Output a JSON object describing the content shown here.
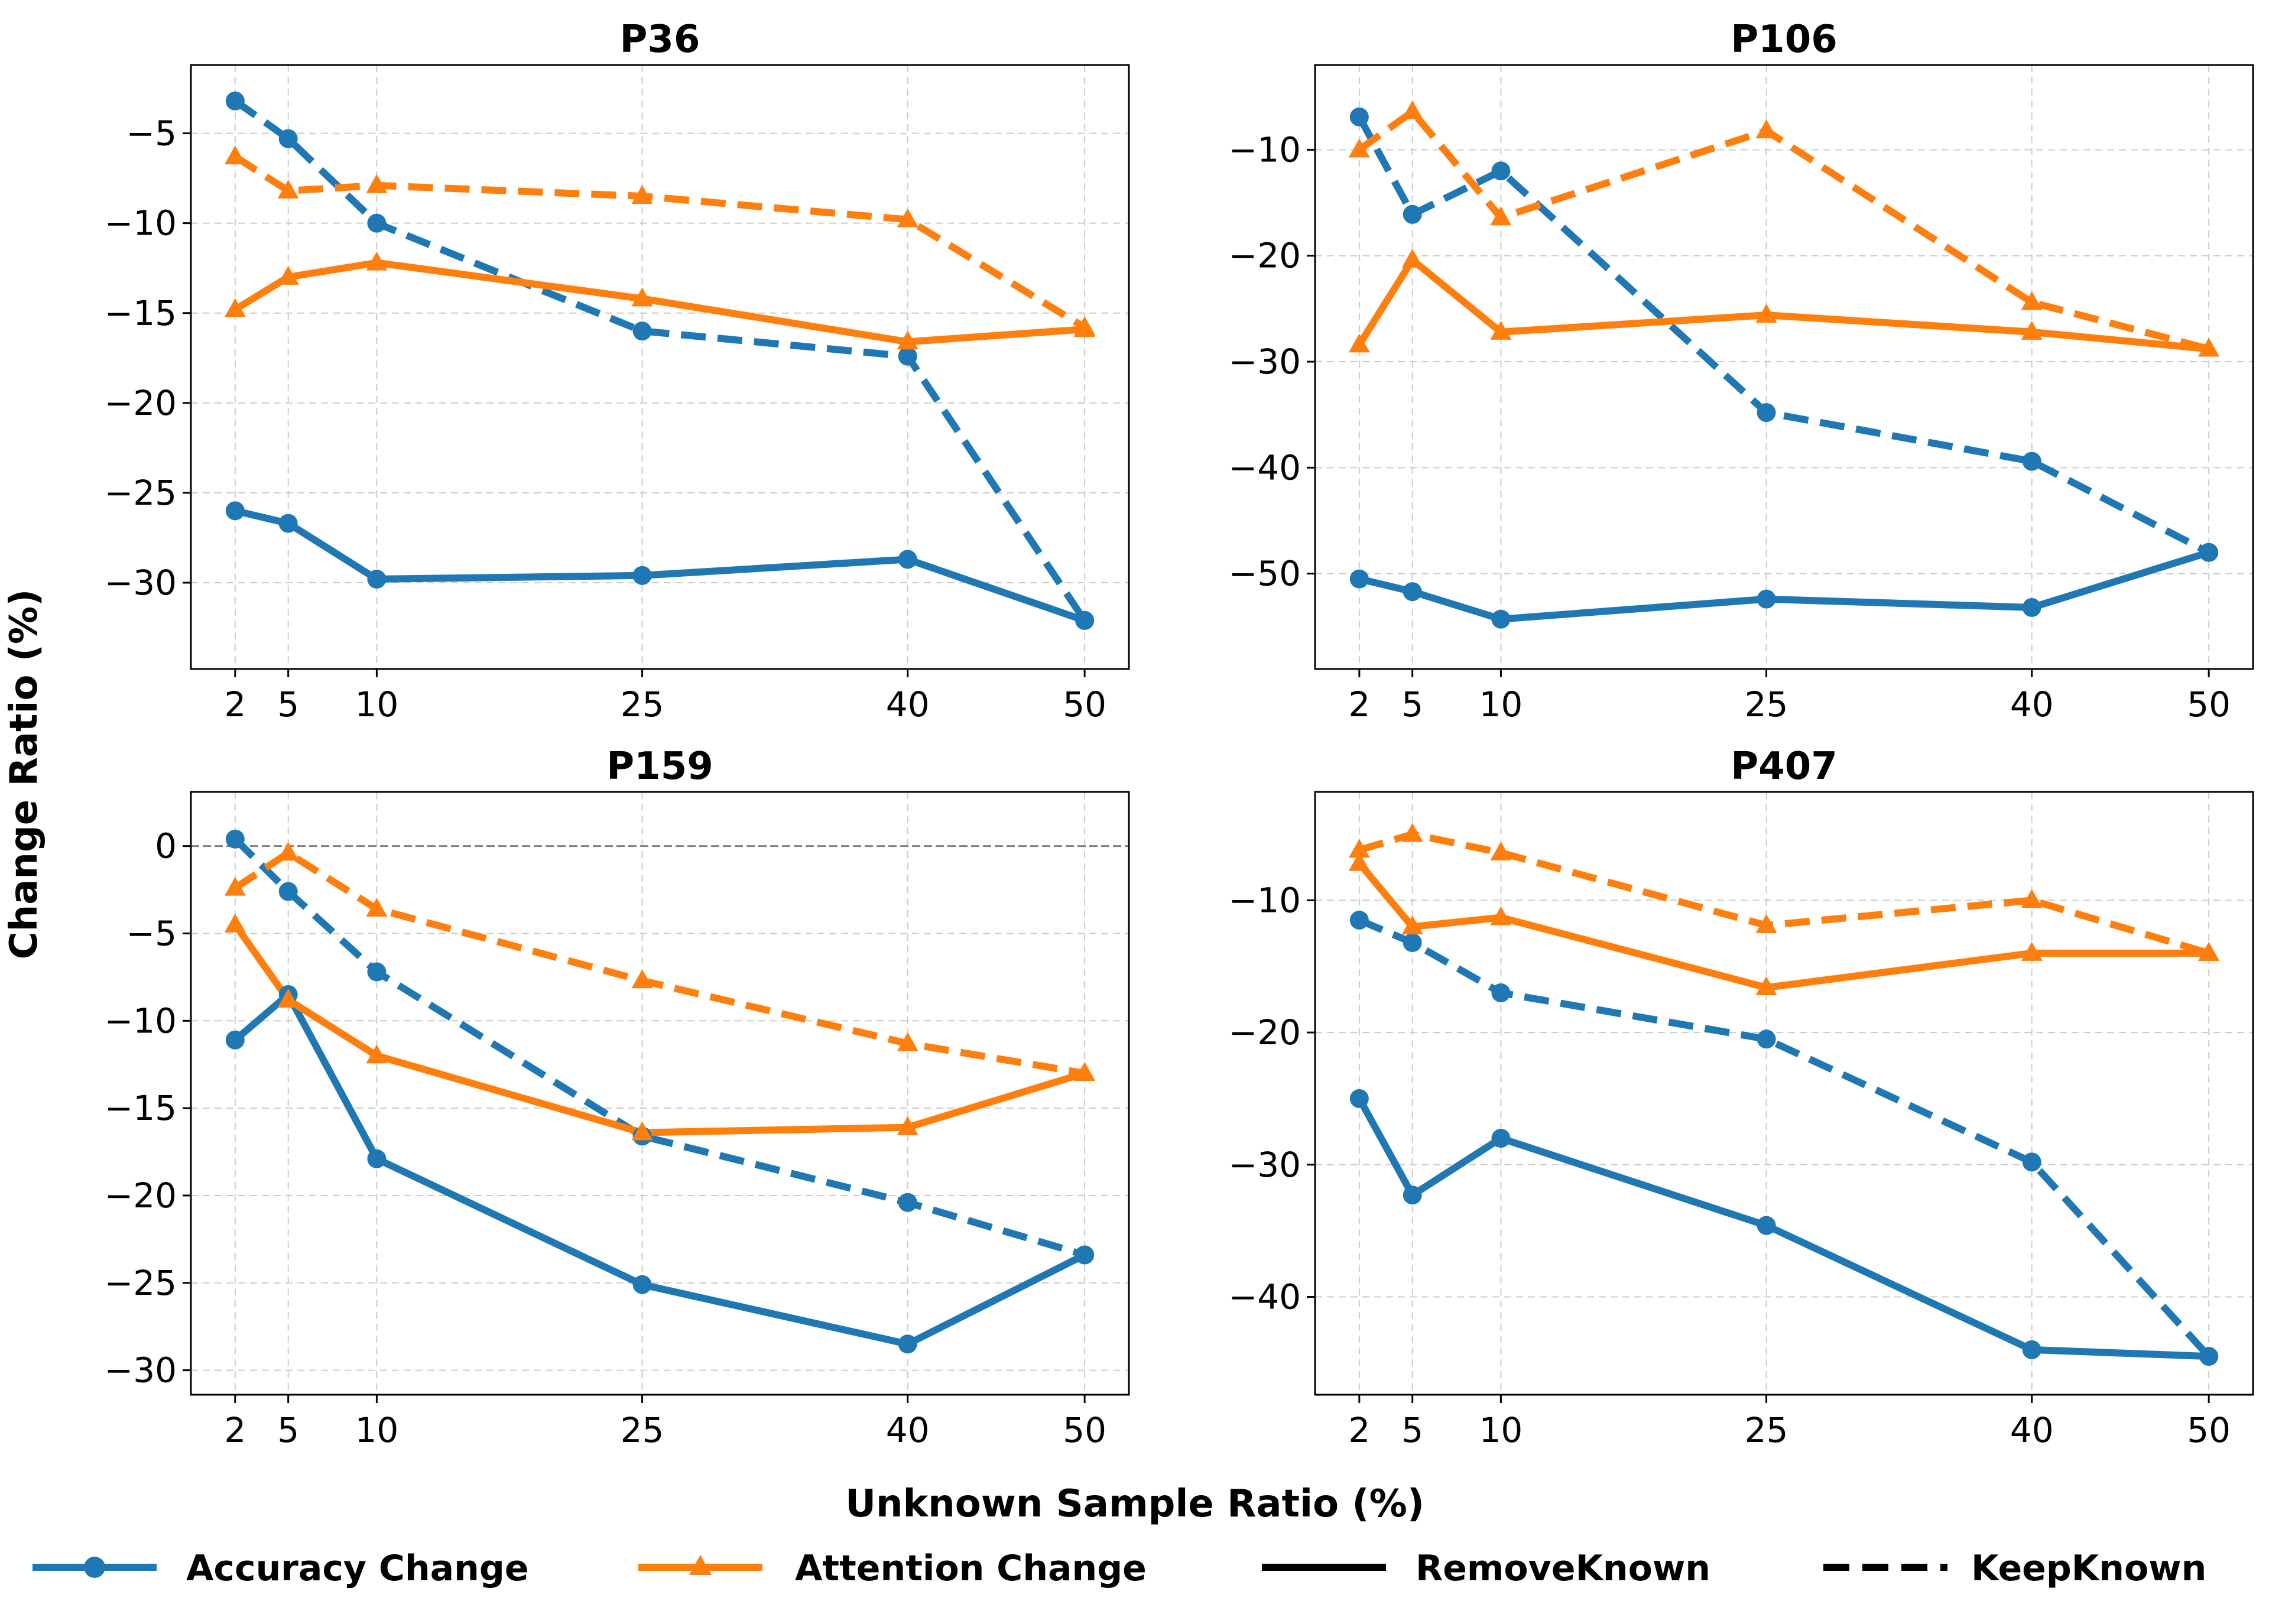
{
  "figure": {
    "ylabel": "Change Ratio (%)",
    "xlabel": "Unknown Sample Ratio (%)"
  },
  "legend": {
    "items": [
      {
        "label": "Accuracy Change",
        "color": "#1f77b4",
        "marker": "circle",
        "style": "solid"
      },
      {
        "label": "Attention Change",
        "color": "#ff7f0e",
        "marker": "triangle",
        "style": "solid"
      },
      {
        "label": "RemoveKnown",
        "color": "#000000",
        "marker": "none",
        "style": "solid"
      },
      {
        "label": "KeepKnown",
        "color": "#000000",
        "marker": "none",
        "style": "dashed"
      }
    ]
  },
  "chart_data": [
    {
      "type": "line",
      "title": "P36",
      "x": [
        2,
        5,
        10,
        25,
        40,
        50
      ],
      "xticks": [
        2,
        5,
        10,
        25,
        40,
        50
      ],
      "xlim": [
        -0.5,
        52.5
      ],
      "ylim": [
        -34.8,
        -1.2
      ],
      "yticks": [
        -30,
        -25,
        -20,
        -15,
        -10,
        -5
      ],
      "zero_line": false,
      "series": [
        {
          "name": "Accuracy Change (RemoveKnown)",
          "metric": "Accuracy Change",
          "condition": "RemoveKnown",
          "values": [
            -26.0,
            -26.7,
            -29.8,
            -29.6,
            -28.7,
            -32.1
          ]
        },
        {
          "name": "Accuracy Change (KeepKnown)",
          "metric": "Accuracy Change",
          "condition": "KeepKnown",
          "values": [
            -3.2,
            -5.3,
            -10.0,
            -16.0,
            -17.4,
            -32.1
          ]
        },
        {
          "name": "Attention Change (RemoveKnown)",
          "metric": "Attention Change",
          "condition": "RemoveKnown",
          "values": [
            -14.8,
            -13.0,
            -12.2,
            -14.2,
            -16.6,
            -15.9
          ]
        },
        {
          "name": "Attention Change (KeepKnown)",
          "metric": "Attention Change",
          "condition": "KeepKnown",
          "values": [
            -6.3,
            -8.2,
            -7.9,
            -8.5,
            -9.8,
            -15.8
          ]
        }
      ]
    },
    {
      "type": "line",
      "title": "P106",
      "x": [
        2,
        5,
        10,
        25,
        40,
        50
      ],
      "xticks": [
        2,
        5,
        10,
        25,
        40,
        50
      ],
      "xlim": [
        -0.5,
        52.5
      ],
      "ylim": [
        -59,
        -2
      ],
      "yticks": [
        -50,
        -40,
        -30,
        -20,
        -10
      ],
      "zero_line": false,
      "series": [
        {
          "name": "Accuracy Change (RemoveKnown)",
          "metric": "Accuracy Change",
          "condition": "RemoveKnown",
          "values": [
            -50.5,
            -51.7,
            -54.3,
            -52.4,
            -53.2,
            -48.0
          ]
        },
        {
          "name": "Accuracy Change (KeepKnown)",
          "metric": "Accuracy Change",
          "condition": "KeepKnown",
          "values": [
            -6.9,
            -16.1,
            -12.0,
            -34.8,
            -39.4,
            -48.0
          ]
        },
        {
          "name": "Attention Change (RemoveKnown)",
          "metric": "Attention Change",
          "condition": "RemoveKnown",
          "values": [
            -28.4,
            -20.4,
            -27.2,
            -25.6,
            -27.2,
            -28.8
          ]
        },
        {
          "name": "Attention Change (KeepKnown)",
          "metric": "Attention Change",
          "condition": "KeepKnown",
          "values": [
            -10.0,
            -6.4,
            -16.4,
            -8.2,
            -24.4,
            -28.8
          ]
        }
      ]
    },
    {
      "type": "line",
      "title": "P159",
      "x": [
        2,
        5,
        10,
        25,
        40,
        50
      ],
      "xticks": [
        2,
        5,
        10,
        25,
        40,
        50
      ],
      "xlim": [
        -0.5,
        52.5
      ],
      "ylim": [
        -31.4,
        3.1
      ],
      "yticks": [
        -30,
        -25,
        -20,
        -15,
        -10,
        -5,
        0
      ],
      "zero_line": true,
      "series": [
        {
          "name": "Accuracy Change (RemoveKnown)",
          "metric": "Accuracy Change",
          "condition": "RemoveKnown",
          "values": [
            -11.1,
            -8.5,
            -17.9,
            -25.1,
            -28.5,
            -23.4
          ]
        },
        {
          "name": "Accuracy Change (KeepKnown)",
          "metric": "Accuracy Change",
          "condition": "KeepKnown",
          "values": [
            0.4,
            -2.6,
            -7.2,
            -16.6,
            -20.4,
            -23.4
          ]
        },
        {
          "name": "Attention Change (RemoveKnown)",
          "metric": "Attention Change",
          "condition": "RemoveKnown",
          "values": [
            -4.5,
            -8.8,
            -12.0,
            -16.4,
            -16.1,
            -13.0
          ]
        },
        {
          "name": "Attention Change (KeepKnown)",
          "metric": "Attention Change",
          "condition": "KeepKnown",
          "values": [
            -2.4,
            -0.4,
            -3.6,
            -7.7,
            -11.3,
            -13.0
          ]
        }
      ]
    },
    {
      "type": "line",
      "title": "P407",
      "x": [
        2,
        5,
        10,
        25,
        40,
        50
      ],
      "xticks": [
        2,
        5,
        10,
        25,
        40,
        50
      ],
      "xlim": [
        -0.5,
        52.5
      ],
      "ylim": [
        -47.4,
        -1.8
      ],
      "yticks": [
        -40,
        -30,
        -20,
        -10
      ],
      "zero_line": false,
      "series": [
        {
          "name": "Accuracy Change (RemoveKnown)",
          "metric": "Accuracy Change",
          "condition": "RemoveKnown",
          "values": [
            -25.0,
            -32.3,
            -28.0,
            -34.6,
            -44.0,
            -44.5
          ]
        },
        {
          "name": "Accuracy Change (KeepKnown)",
          "metric": "Accuracy Change",
          "condition": "KeepKnown",
          "values": [
            -11.5,
            -13.2,
            -17.0,
            -20.5,
            -29.8,
            -44.5
          ]
        },
        {
          "name": "Attention Change (RemoveKnown)",
          "metric": "Attention Change",
          "condition": "RemoveKnown",
          "values": [
            -7.2,
            -12.0,
            -11.3,
            -16.6,
            -14.0,
            -14.0
          ]
        },
        {
          "name": "Attention Change (KeepKnown)",
          "metric": "Attention Change",
          "condition": "KeepKnown",
          "values": [
            -6.2,
            -5.0,
            -6.4,
            -11.9,
            -10.0,
            -14.0
          ]
        }
      ]
    }
  ]
}
